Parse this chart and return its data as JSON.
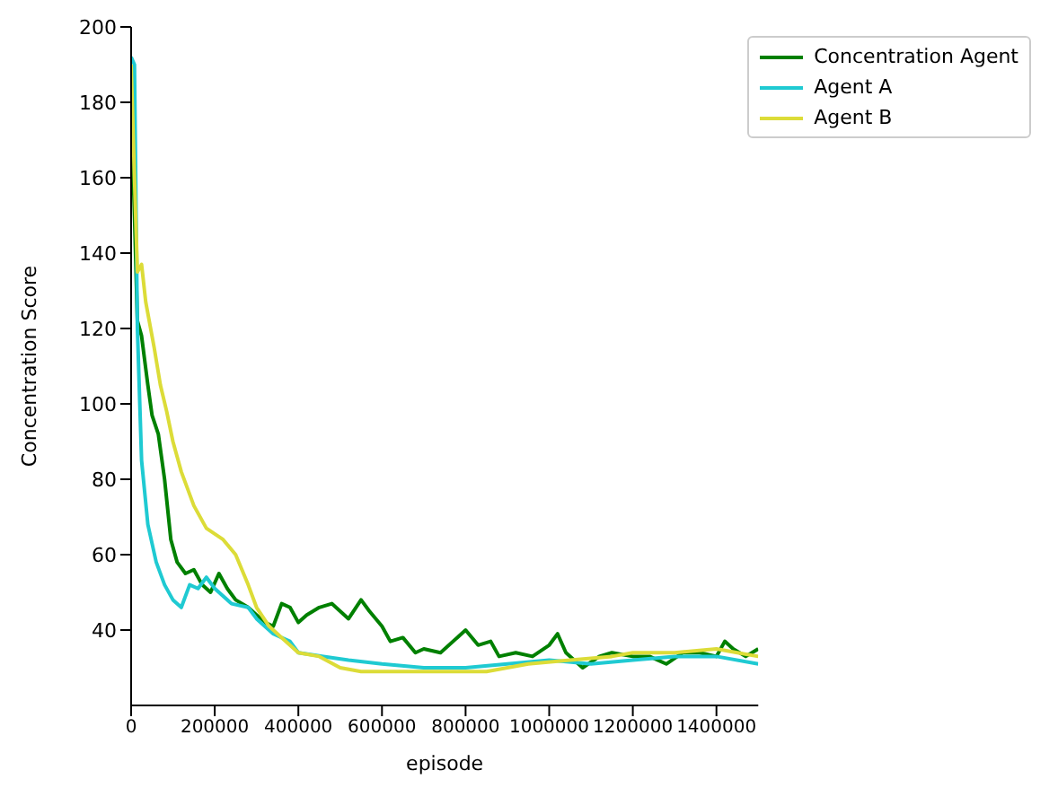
{
  "chart_data": {
    "type": "line",
    "xlabel": "episode",
    "ylabel": "Concentration Score",
    "xlim": [
      0,
      1500000
    ],
    "xticks": [
      0,
      200000,
      400000,
      600000,
      800000,
      1000000,
      1200000,
      1400000
    ],
    "ylim": [
      20,
      200
    ],
    "yticks": [
      40,
      60,
      80,
      100,
      120,
      140,
      160,
      180,
      200
    ],
    "grid": false,
    "legend": "top right",
    "marker": "none",
    "line_style": "solid",
    "series": [
      {
        "name": "Concentration Agent",
        "color": "#008000",
        "x": [
          0,
          8000,
          15000,
          25000,
          40000,
          50000,
          65000,
          80000,
          95000,
          110000,
          130000,
          150000,
          170000,
          190000,
          210000,
          230000,
          250000,
          280000,
          300000,
          320000,
          340000,
          360000,
          380000,
          400000,
          420000,
          450000,
          480000,
          500000,
          520000,
          550000,
          570000,
          600000,
          620000,
          650000,
          680000,
          700000,
          740000,
          780000,
          800000,
          830000,
          860000,
          880000,
          920000,
          960000,
          1000000,
          1020000,
          1040000,
          1080000,
          1120000,
          1150000,
          1200000,
          1240000,
          1280000,
          1320000,
          1360000,
          1400000,
          1420000,
          1440000,
          1470000,
          1500000
        ],
        "values": [
          180,
          150,
          122,
          118,
          105,
          97,
          92,
          80,
          64,
          58,
          55,
          56,
          52,
          50,
          55,
          51,
          48,
          46,
          44,
          42,
          41,
          47,
          46,
          42,
          44,
          46,
          47,
          45,
          43,
          48,
          45,
          41,
          37,
          38,
          34,
          35,
          34,
          38,
          40,
          36,
          37,
          33,
          34,
          33,
          36,
          39,
          34,
          30,
          33,
          34,
          33,
          33,
          31,
          34,
          34,
          33,
          37,
          35,
          33,
          35
        ]
      },
      {
        "name": "Agent A",
        "color": "#1fcad2",
        "x": [
          0,
          8000,
          15000,
          25000,
          40000,
          60000,
          80000,
          100000,
          120000,
          140000,
          160000,
          180000,
          200000,
          240000,
          280000,
          300000,
          340000,
          380000,
          400000,
          460000,
          520000,
          600000,
          700000,
          800000,
          900000,
          1000000,
          1100000,
          1200000,
          1300000,
          1400000,
          1500000
        ],
        "values": [
          192,
          190,
          120,
          85,
          68,
          58,
          52,
          48,
          46,
          52,
          51,
          54,
          51,
          47,
          46,
          43,
          39,
          37,
          34,
          33,
          32,
          31,
          30,
          30,
          31,
          32,
          31,
          32,
          33,
          33,
          31
        ]
      },
      {
        "name": "Agent B",
        "color": "#dcdc38",
        "x": [
          0,
          8000,
          15000,
          25000,
          35000,
          55000,
          70000,
          85000,
          100000,
          120000,
          150000,
          180000,
          220000,
          250000,
          280000,
          300000,
          330000,
          360000,
          400000,
          450000,
          500000,
          550000,
          650000,
          750000,
          850000,
          950000,
          1050000,
          1150000,
          1200000,
          1280000,
          1300000,
          1400000,
          1450000,
          1500000
        ],
        "values": [
          190,
          160,
          135,
          137,
          127,
          115,
          105,
          98,
          90,
          82,
          73,
          67,
          64,
          60,
          52,
          46,
          41,
          38,
          34,
          33,
          30,
          29,
          29,
          29,
          29,
          31,
          32,
          33,
          34,
          34,
          34,
          35,
          34,
          33
        ]
      }
    ]
  }
}
